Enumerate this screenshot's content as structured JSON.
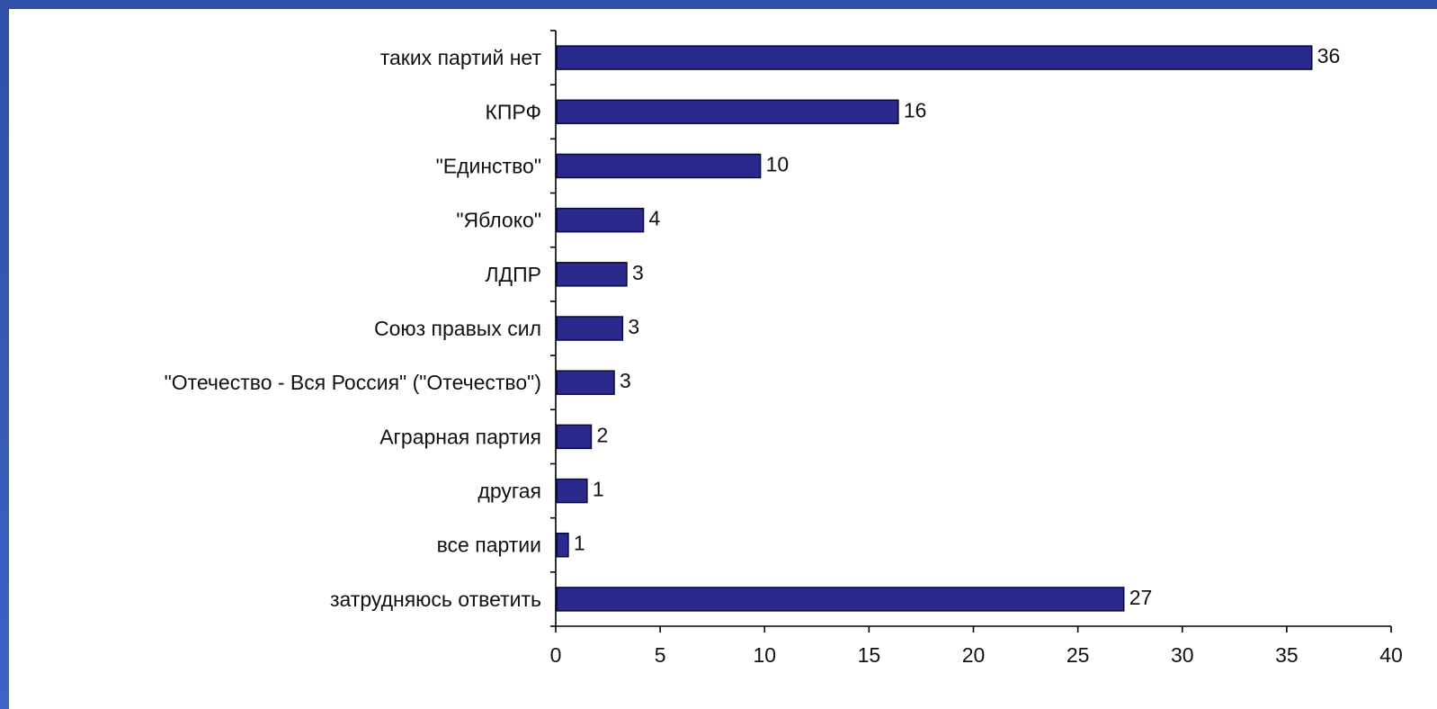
{
  "chart_data": {
    "type": "bar",
    "orientation": "horizontal",
    "title": "",
    "xlabel": "",
    "ylabel": "",
    "categories": [
      "таких партий нет",
      "КПРФ",
      "\"Единство\"",
      "\"Яблоко\"",
      "ЛДПР",
      "Союз правых сил",
      "\"Отечество - Вся Россия\" (\"Отечество\")",
      "Аграрная партия",
      "другая",
      "все партии",
      "затрудняюсь ответить"
    ],
    "values": [
      36.2,
      16.4,
      9.8,
      4.2,
      3.4,
      3.2,
      2.8,
      1.7,
      1.5,
      0.6,
      27.2
    ],
    "value_labels": [
      "36",
      "16",
      "10",
      "4",
      "3",
      "3",
      "3",
      "2",
      "1",
      "1",
      "27"
    ],
    "xlim": [
      0,
      40
    ],
    "xticks": [
      0,
      5,
      10,
      15,
      20,
      25,
      30,
      35,
      40
    ],
    "grid": false,
    "legend": "none",
    "colors": {
      "bar": "#2a2a8e",
      "background": "#ffffff",
      "frame": "#3a5cb4"
    }
  }
}
